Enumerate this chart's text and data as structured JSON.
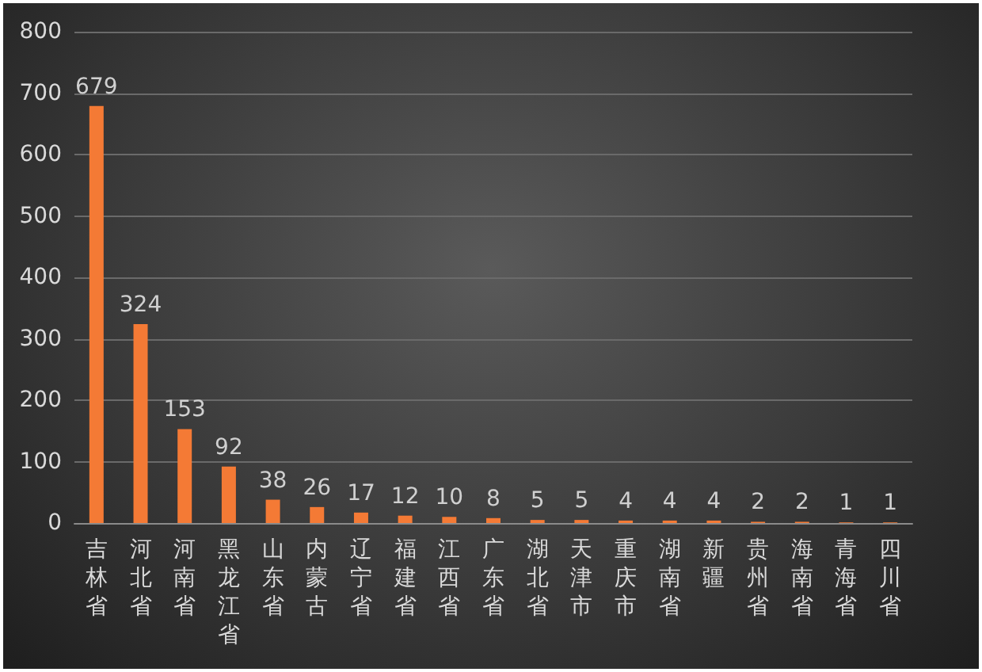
{
  "chart_data": {
    "type": "bar",
    "categories": [
      "吉林省",
      "河北省",
      "河南省",
      "黑龙江省",
      "山东省",
      "内蒙古",
      "辽宁省",
      "福建省",
      "江西省",
      "广东省",
      "湖北省",
      "天津市",
      "重庆市",
      "湖南省",
      "新疆",
      "贵州省",
      "海南省",
      "青海省",
      "四川省"
    ],
    "values": [
      679,
      324,
      153,
      92,
      38,
      26,
      17,
      12,
      10,
      8,
      5,
      5,
      4,
      4,
      4,
      2,
      2,
      1,
      1
    ],
    "color": "#f47a35",
    "ylim": [
      0,
      800
    ],
    "yticks": [
      0,
      100,
      200,
      300,
      400,
      500,
      600,
      700,
      800
    ],
    "grid": "y",
    "data_labels": true
  }
}
